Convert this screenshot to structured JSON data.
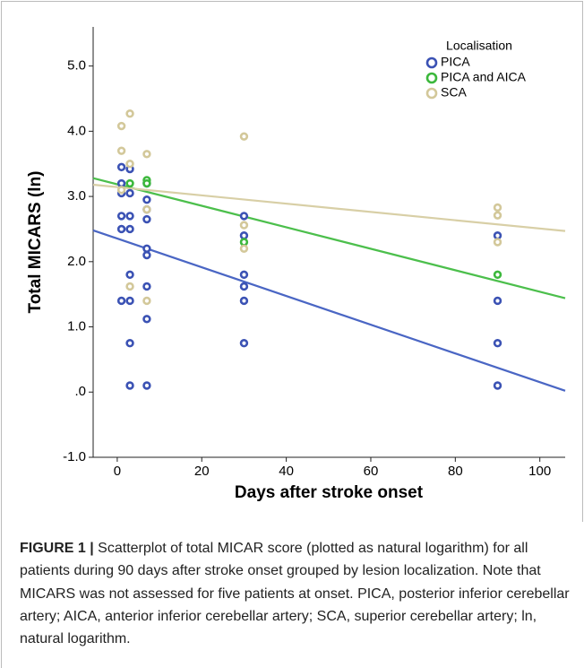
{
  "chart_data": {
    "type": "scatter",
    "xlabel": "Days after stroke onset",
    "ylabel": "Total MICARS (ln)",
    "legend_title": "Localisation",
    "legend": "upper right",
    "xlim": [
      -5.7,
      106
    ],
    "ylim": [
      -1.0,
      5.6
    ],
    "xticks": [
      0,
      20,
      40,
      60,
      80,
      100
    ],
    "yticks": [
      {
        "value": -1,
        "label": "-1.0"
      },
      {
        "value": 0,
        "label": ".0"
      },
      {
        "value": 1,
        "label": "1.0"
      },
      {
        "value": 2,
        "label": "2.0"
      },
      {
        "value": 3,
        "label": "3.0"
      },
      {
        "value": 4,
        "label": "4.0"
      },
      {
        "value": 5,
        "label": "5.0"
      }
    ],
    "fit_x": [
      -5.7,
      106
    ],
    "series": [
      {
        "name": "PICA",
        "color": "#3b52b4",
        "line_color": "#4a66c4",
        "x": [
          1,
          1,
          1,
          1,
          1,
          1,
          3,
          3,
          3,
          3,
          3,
          3,
          3,
          3,
          7,
          7,
          7,
          7,
          7,
          7,
          7,
          7,
          7,
          30,
          30,
          30,
          30,
          30,
          30,
          90,
          90,
          90,
          90
        ],
        "values": [
          3.45,
          3.2,
          3.05,
          2.7,
          2.5,
          1.4,
          3.42,
          3.05,
          2.7,
          2.5,
          1.8,
          1.4,
          0.75,
          0.1,
          3.2,
          2.95,
          2.8,
          2.65,
          2.2,
          2.1,
          1.62,
          1.12,
          0.1,
          2.7,
          2.4,
          1.8,
          1.62,
          1.4,
          0.75,
          2.4,
          1.4,
          0.75,
          0.1
        ],
        "fit": [
          2.48,
          0.02
        ]
      },
      {
        "name": "PICA and AICA",
        "color": "#3cb83c",
        "line_color": "#4cbf4c",
        "x": [
          3,
          7,
          7,
          30,
          90
        ],
        "values": [
          3.2,
          3.25,
          3.2,
          2.3,
          1.8
        ],
        "fit": [
          3.28,
          1.44
        ]
      },
      {
        "name": "SCA",
        "color": "#d3c89a",
        "line_color": "#d8cfa6",
        "x": [
          1,
          1,
          1,
          3,
          3,
          3,
          7,
          7,
          7,
          30,
          30,
          30,
          90,
          90,
          90
        ],
        "values": [
          4.08,
          3.7,
          3.1,
          4.27,
          3.5,
          1.62,
          3.65,
          2.8,
          1.4,
          3.92,
          2.56,
          2.2,
          2.83,
          2.71,
          2.3
        ],
        "fit": [
          3.18,
          2.47
        ]
      }
    ]
  },
  "caption": {
    "label": "FIGURE 1 |",
    "text": "Scatterplot of total MICAR score (plotted as natural logarithm) for all patients during 90 days after stroke onset grouped by lesion localization. Note that MICARS was not assessed for five patients at onset. PICA, posterior inferior cerebellar artery; AICA, anterior inferior cerebellar artery; SCA, superior cerebellar artery; ln, natural logarithm."
  }
}
